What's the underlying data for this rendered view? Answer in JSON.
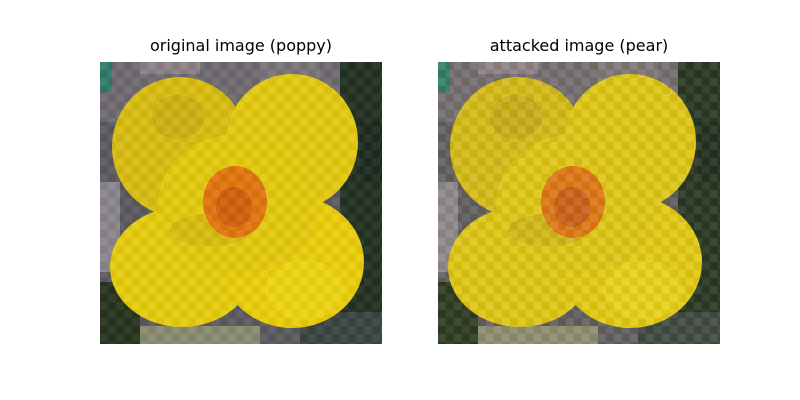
{
  "panels": [
    {
      "title": "original image (poppy)"
    },
    {
      "title": "attacked image (pear)"
    }
  ],
  "colors": {
    "petal": "#e6cb0c",
    "petal_shade": "#c9a913",
    "petal_highlight": "#f2dc1a",
    "center": "#e2760f",
    "center_core": "#d25f10",
    "background_dark": "#223222",
    "background_gray": "#7d787e",
    "background_teal": "#2f7a6a"
  }
}
